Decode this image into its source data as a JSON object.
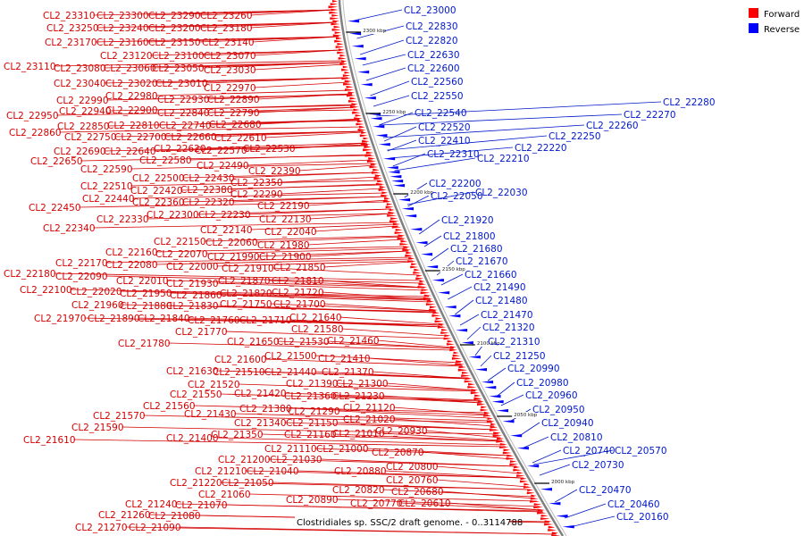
{
  "legend": {
    "forward": {
      "label": "Forward",
      "color": "#ff0000"
    },
    "reverse": {
      "label": "Reverse",
      "color": "#0000ff"
    }
  },
  "caption": "Clostridiales sp. SSC/2 draft genome. - 0..3114788",
  "colors": {
    "forward": "#d40000",
    "reverse": "#0018c8",
    "backbone": "#808080"
  },
  "ticks": [
    "2300 kbp",
    "2250 kbp",
    "2200 kbp",
    "2150 kbp",
    "2100 kbp",
    "2050 kbp",
    "2000 kbp"
  ],
  "forward_labels": [
    "CL2_23310",
    "CL2_23300",
    "CL2_23290",
    "CL2_23260",
    "CL2_23250",
    "CL2_23240",
    "CL2_23200",
    "CL2_23180",
    "CL2_23170",
    "CL2_23160",
    "CL2_23150",
    "CL2_23140",
    "CL2_23120",
    "CL2_23100",
    "CL2_23070",
    "CL2_23110",
    "CL2_23080",
    "CL2_23060",
    "CL2_23050",
    "CL2_23030",
    "CL2_23040",
    "CL2_23020",
    "CL2_23010",
    "CL2_22970",
    "CL2_22990",
    "CL2_22980",
    "CL2_22930",
    "CL2_22890",
    "CL2_22950",
    "CL2_22940",
    "CL2_22900",
    "CL2_22840",
    "CL2_22790",
    "CL2_22850",
    "CL2_22810",
    "CL2_22740",
    "CL2_22680",
    "CL2_22860",
    "CL2_22750",
    "CL2_22700",
    "CL2_22660",
    "CL2_22610",
    "CL2_22690",
    "CL2_22640",
    "CL2_22620",
    "CL2_22570",
    "CL2_22530",
    "CL2_22650",
    "CL2_22580",
    "CL2_22490",
    "CL2_22590",
    "CL2_22390",
    "CL2_22500",
    "CL2_22430",
    "CL2_22350",
    "CL2_22510",
    "CL2_22420",
    "CL2_22380",
    "CL2_22290",
    "CL2_22440",
    "CL2_22360",
    "CL2_22320",
    "CL2_22450",
    "CL2_22190",
    "CL2_22300",
    "CL2_22230",
    "CL2_22330",
    "CL2_22130",
    "CL2_22340",
    "CL2_22140",
    "CL2_22040",
    "CL2_22150",
    "CL2_22060",
    "CL2_21980",
    "CL2_22160",
    "CL2_22070",
    "CL2_21990",
    "CL2_21900",
    "CL2_22170",
    "CL2_22080",
    "CL2_22000",
    "CL2_21910",
    "CL2_21850",
    "CL2_22180",
    "CL2_22090",
    "CL2_22010",
    "CL2_21930",
    "CL2_21870",
    "CL2_21810",
    "CL2_22100",
    "CL2_22020",
    "CL2_21950",
    "CL2_21860",
    "CL2_21820",
    "CL2_21720",
    "CL2_21960",
    "CL2_21880",
    "CL2_21830",
    "CL2_21750",
    "CL2_21700",
    "CL2_21970",
    "CL2_21890",
    "CL2_21840",
    "CL2_21760",
    "CL2_21710",
    "CL2_21640",
    "CL2_21770",
    "CL2_21580",
    "CL2_21780",
    "CL2_21650",
    "CL2_21530",
    "CL2_21460",
    "CL2_21500",
    "CL2_21410",
    "CL2_21600",
    "CL2_21440",
    "CL2_21370",
    "CL2_21630",
    "CL2_21510",
    "CL2_21520",
    "CL2_21390",
    "CL2_21300",
    "CL2_21550",
    "CL2_21420",
    "CL2_21360",
    "CL2_21230",
    "CL2_21560",
    "CL2_21380",
    "CL2_21290",
    "CL2_21120",
    "CL2_21570",
    "CL2_21430",
    "CL2_21340",
    "CL2_21150",
    "CL2_21020",
    "CL2_21590",
    "CL2_21350",
    "CL2_21160",
    "CL2_21010",
    "CL2_20930",
    "CL2_21610",
    "CL2_21400",
    "CL2_21110",
    "CL2_21000",
    "CL2_21200",
    "CL2_21030",
    "CL2_20870",
    "CL2_21210",
    "CL2_21040",
    "CL2_20880",
    "CL2_20800",
    "CL2_21220",
    "CL2_21050",
    "CL2_20760",
    "CL2_20820",
    "CL2_20680",
    "CL2_21060",
    "CL2_20890",
    "CL2_20770",
    "CL2_20610",
    "CL2_21240",
    "CL2_21070",
    "CL2_21260",
    "CL2_21080",
    "CL2_21270",
    "CL2_21090"
  ],
  "reverse_labels": [
    "CL2_23000",
    "CL2_22830",
    "CL2_22820",
    "CL2_22630",
    "CL2_22600",
    "CL2_22560",
    "CL2_22550",
    "CL2_22540",
    "CL2_22520",
    "CL2_22410",
    "CL2_22310",
    "CL2_22280",
    "CL2_22270",
    "CL2_22260",
    "CL2_22250",
    "CL2_22220",
    "CL2_22210",
    "CL2_22200",
    "CL2_22050",
    "CL2_22030",
    "CL2_21920",
    "CL2_21800",
    "CL2_21680",
    "CL2_21670",
    "CL2_21660",
    "CL2_21490",
    "CL2_21480",
    "CL2_21470",
    "CL2_21320",
    "CL2_21310",
    "CL2_21250",
    "CL2_20990",
    "CL2_20980",
    "CL2_20960",
    "CL2_20950",
    "CL2_20940",
    "CL2_20810",
    "CL2_20740",
    "CL2_20570",
    "CL2_20730",
    "CL2_20470",
    "CL2_20460",
    "CL2_20160"
  ]
}
